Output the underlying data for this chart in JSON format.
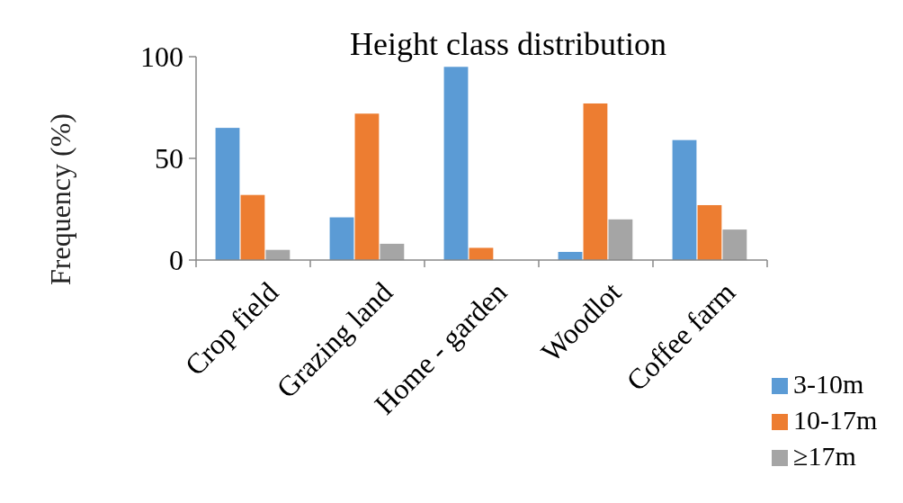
{
  "chart_data": {
    "type": "bar",
    "title": "Height class distribution",
    "ylabel": "Frequency (%)",
    "categories": [
      "Crop field",
      "Grazing land",
      "Home - garden",
      "Woodlot",
      "Coffee  farm"
    ],
    "series": [
      {
        "name": "3-10m",
        "color": "#5b9bd5",
        "values": [
          65,
          21,
          95,
          4,
          59
        ]
      },
      {
        "name": "10-17m",
        "color": "#ed7d31",
        "values": [
          32,
          72,
          6,
          77,
          27
        ]
      },
      {
        "name": "≥17m",
        "color": "#a5a5a5",
        "values": [
          5,
          8,
          0,
          20,
          15
        ]
      }
    ],
    "ylim": [
      0,
      100
    ],
    "yticks": [
      0,
      50,
      100
    ],
    "grid": false,
    "legend": "bottom right"
  }
}
